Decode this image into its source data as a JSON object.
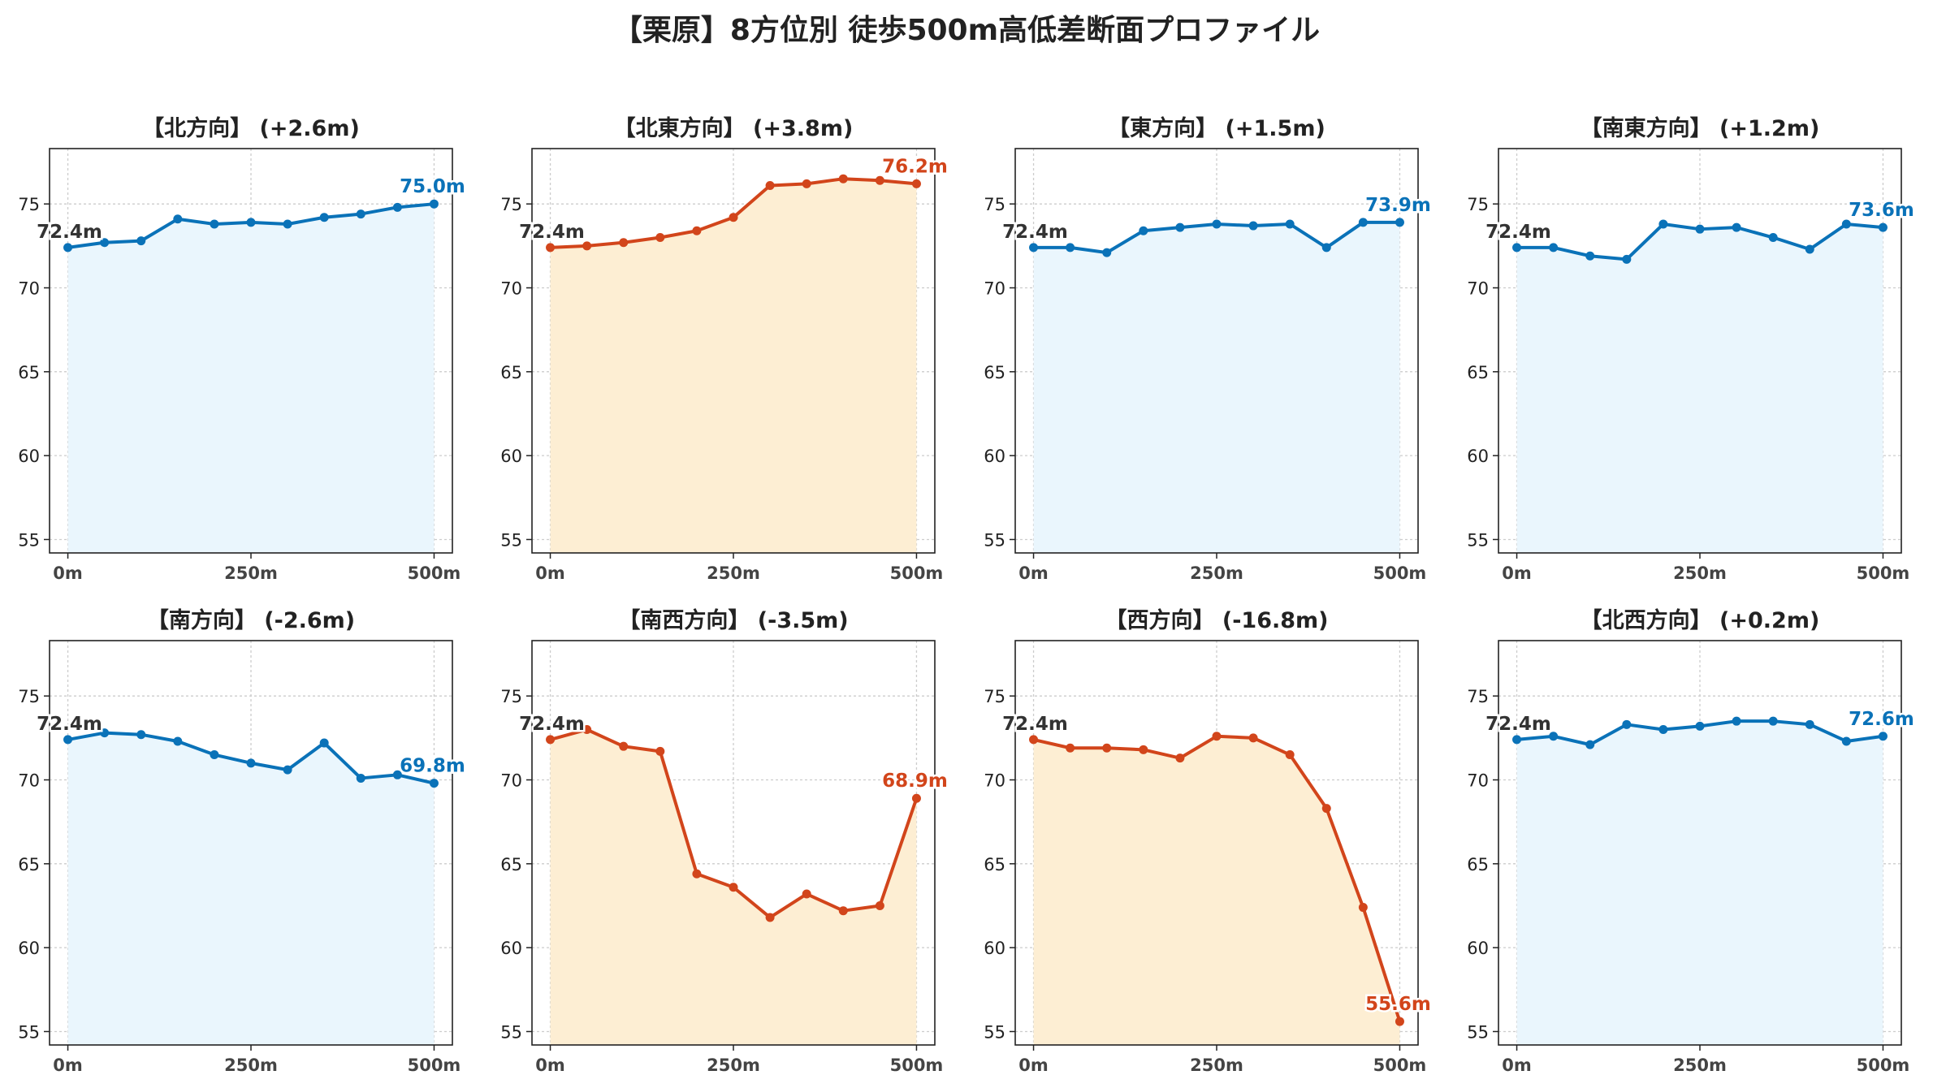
{
  "figure_title": "【栗原】8方位別 徒歩500m高低差断面プロファイル",
  "colors": {
    "rise_line": "#0a72b8",
    "rise_fill": "#eaf6fd",
    "drop_line": "#d2451b",
    "drop_fill": "#fdeed3",
    "start_label": "#333333",
    "grid": "#cccccc"
  },
  "chart_data": [
    {
      "type": "area",
      "title": "【北方向】 (+2.6m)",
      "color_scheme": "rise",
      "x": [
        0,
        50,
        100,
        150,
        200,
        250,
        300,
        350,
        400,
        450,
        500
      ],
      "y": [
        72.4,
        72.7,
        72.8,
        74.1,
        73.8,
        73.9,
        73.8,
        74.2,
        74.4,
        74.8,
        75.0
      ],
      "start_label": "72.4m",
      "end_label": "75.0m",
      "xticks": [
        "0m",
        "250m",
        "500m"
      ],
      "xtick_values": [
        0,
        250,
        500
      ],
      "yticks": [
        "55",
        "60",
        "65",
        "70",
        "75"
      ],
      "ytick_values": [
        55,
        60,
        65,
        70,
        75
      ],
      "xlim": [
        -25,
        525
      ],
      "ylim": [
        54.2,
        78.3
      ],
      "grid": true
    },
    {
      "type": "area",
      "title": "【北東方向】 (+3.8m)",
      "color_scheme": "drop",
      "x": [
        0,
        50,
        100,
        150,
        200,
        250,
        300,
        350,
        400,
        450,
        500
      ],
      "y": [
        72.4,
        72.5,
        72.7,
        73.0,
        73.4,
        74.2,
        76.1,
        76.2,
        76.5,
        76.4,
        76.2
      ],
      "start_label": "72.4m",
      "end_label": "76.2m",
      "xticks": [
        "0m",
        "250m",
        "500m"
      ],
      "xtick_values": [
        0,
        250,
        500
      ],
      "yticks": [
        "55",
        "60",
        "65",
        "70",
        "75"
      ],
      "ytick_values": [
        55,
        60,
        65,
        70,
        75
      ],
      "xlim": [
        -25,
        525
      ],
      "ylim": [
        54.2,
        78.3
      ],
      "grid": true
    },
    {
      "type": "area",
      "title": "【東方向】 (+1.5m)",
      "color_scheme": "rise",
      "x": [
        0,
        50,
        100,
        150,
        200,
        250,
        300,
        350,
        400,
        450,
        500
      ],
      "y": [
        72.4,
        72.4,
        72.1,
        73.4,
        73.6,
        73.8,
        73.7,
        73.8,
        72.4,
        73.9,
        73.9
      ],
      "start_label": "72.4m",
      "end_label": "73.9m",
      "xticks": [
        "0m",
        "250m",
        "500m"
      ],
      "xtick_values": [
        0,
        250,
        500
      ],
      "yticks": [
        "55",
        "60",
        "65",
        "70",
        "75"
      ],
      "ytick_values": [
        55,
        60,
        65,
        70,
        75
      ],
      "xlim": [
        -25,
        525
      ],
      "ylim": [
        54.2,
        78.3
      ],
      "grid": true
    },
    {
      "type": "area",
      "title": "【南東方向】 (+1.2m)",
      "color_scheme": "rise",
      "x": [
        0,
        50,
        100,
        150,
        200,
        250,
        300,
        350,
        400,
        450,
        500
      ],
      "y": [
        72.4,
        72.4,
        71.9,
        71.7,
        73.8,
        73.5,
        73.6,
        73.0,
        72.3,
        73.8,
        73.6
      ],
      "start_label": "72.4m",
      "end_label": "73.6m",
      "xticks": [
        "0m",
        "250m",
        "500m"
      ],
      "xtick_values": [
        0,
        250,
        500
      ],
      "yticks": [
        "55",
        "60",
        "65",
        "70",
        "75"
      ],
      "ytick_values": [
        55,
        60,
        65,
        70,
        75
      ],
      "xlim": [
        -25,
        525
      ],
      "ylim": [
        54.2,
        78.3
      ],
      "grid": true
    },
    {
      "type": "area",
      "title": "【南方向】 (-2.6m)",
      "color_scheme": "rise",
      "x": [
        0,
        50,
        100,
        150,
        200,
        250,
        300,
        350,
        400,
        450,
        500
      ],
      "y": [
        72.4,
        72.8,
        72.7,
        72.3,
        71.5,
        71.0,
        70.6,
        72.2,
        70.1,
        70.3,
        69.8
      ],
      "start_label": "72.4m",
      "end_label": "69.8m",
      "xticks": [
        "0m",
        "250m",
        "500m"
      ],
      "xtick_values": [
        0,
        250,
        500
      ],
      "yticks": [
        "55",
        "60",
        "65",
        "70",
        "75"
      ],
      "ytick_values": [
        55,
        60,
        65,
        70,
        75
      ],
      "xlim": [
        -25,
        525
      ],
      "ylim": [
        54.2,
        78.3
      ],
      "grid": true
    },
    {
      "type": "area",
      "title": "【南西方向】 (-3.5m)",
      "color_scheme": "drop",
      "x": [
        0,
        50,
        100,
        150,
        200,
        250,
        300,
        350,
        400,
        450,
        500
      ],
      "y": [
        72.4,
        73.0,
        72.0,
        71.7,
        64.4,
        63.6,
        61.8,
        63.2,
        62.2,
        62.5,
        68.9
      ],
      "start_label": "72.4m",
      "end_label": "68.9m",
      "xticks": [
        "0m",
        "250m",
        "500m"
      ],
      "xtick_values": [
        0,
        250,
        500
      ],
      "yticks": [
        "55",
        "60",
        "65",
        "70",
        "75"
      ],
      "ytick_values": [
        55,
        60,
        65,
        70,
        75
      ],
      "xlim": [
        -25,
        525
      ],
      "ylim": [
        54.2,
        78.3
      ],
      "grid": true
    },
    {
      "type": "area",
      "title": "【西方向】 (-16.8m)",
      "color_scheme": "drop",
      "x": [
        0,
        50,
        100,
        150,
        200,
        250,
        300,
        350,
        400,
        450,
        500
      ],
      "y": [
        72.4,
        71.9,
        71.9,
        71.8,
        71.3,
        72.6,
        72.5,
        71.5,
        68.3,
        62.4,
        55.6
      ],
      "start_label": "72.4m",
      "end_label": "55.6m",
      "xticks": [
        "0m",
        "250m",
        "500m"
      ],
      "xtick_values": [
        0,
        250,
        500
      ],
      "yticks": [
        "55",
        "60",
        "65",
        "70",
        "75"
      ],
      "ytick_values": [
        55,
        60,
        65,
        70,
        75
      ],
      "xlim": [
        -25,
        525
      ],
      "ylim": [
        54.2,
        78.3
      ],
      "grid": true
    },
    {
      "type": "area",
      "title": "【北西方向】 (+0.2m)",
      "color_scheme": "rise",
      "x": [
        0,
        50,
        100,
        150,
        200,
        250,
        300,
        350,
        400,
        450,
        500
      ],
      "y": [
        72.4,
        72.6,
        72.1,
        73.3,
        73.0,
        73.2,
        73.5,
        73.5,
        73.3,
        72.3,
        72.6
      ],
      "start_label": "72.4m",
      "end_label": "72.6m",
      "xticks": [
        "0m",
        "250m",
        "500m"
      ],
      "xtick_values": [
        0,
        250,
        500
      ],
      "yticks": [
        "55",
        "60",
        "65",
        "70",
        "75"
      ],
      "ytick_values": [
        55,
        60,
        65,
        70,
        75
      ],
      "xlim": [
        -25,
        525
      ],
      "ylim": [
        54.2,
        78.3
      ],
      "grid": true
    }
  ]
}
